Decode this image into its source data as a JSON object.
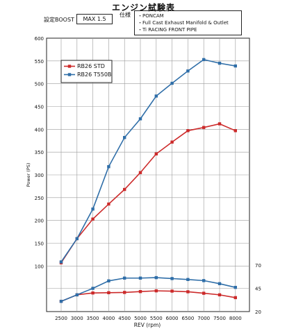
{
  "header": {
    "title": "エンジン試験表",
    "boost_label": "設定BOOST",
    "boost_value": "MAX 1.5",
    "spec_label": "仕様",
    "spec_items": [
      "・PONCAM",
      "・Full Cast Exhaust Manifold & Outlet",
      "・Ti RACING FRONT PIPE"
    ]
  },
  "chart_data": {
    "type": "line",
    "xlabel": "REV (rpm)",
    "ylabel": "Power (PS)",
    "y2label": "",
    "x": [
      2500,
      3000,
      3500,
      4000,
      4500,
      5000,
      5500,
      6000,
      6500,
      7000,
      7500,
      8000
    ],
    "x_ticks": [
      "2500",
      "3000",
      "3500",
      "4000",
      "4500",
      "5000",
      "5500",
      "6000",
      "6500",
      "7000",
      "7500",
      "8000"
    ],
    "ylim": [
      0,
      600
    ],
    "y_ticks": [
      100,
      150,
      200,
      250,
      300,
      350,
      400,
      450,
      500,
      550,
      600
    ],
    "y2lim": [
      20,
      70
    ],
    "y2_ticks": [
      20,
      45,
      70
    ],
    "grid": true,
    "legend_position": "top-left",
    "series": [
      {
        "name": "RB26 STD",
        "axis": "left",
        "color": "#cc2a2a",
        "values": [
          107,
          160,
          203,
          236,
          268,
          305,
          346,
          372,
          397,
          404,
          412,
          397
        ]
      },
      {
        "name": "RB26 T550B",
        "axis": "left",
        "color": "#2f6ea8",
        "values": [
          109,
          160,
          225,
          318,
          382,
          423,
          473,
          501,
          528,
          553,
          545,
          539
        ]
      },
      {
        "name": "",
        "axis": "right",
        "color": "#cc2a2a",
        "values": [
          31,
          38,
          40,
          40.3,
          40.6,
          41.5,
          42.3,
          42,
          41.3,
          39.7,
          38,
          35
        ]
      },
      {
        "name": "",
        "axis": "right",
        "color": "#2f6ea8",
        "values": [
          31,
          38,
          45,
          53,
          56,
          56,
          56.5,
          55.5,
          54.5,
          53.3,
          50,
          46
        ]
      }
    ]
  }
}
